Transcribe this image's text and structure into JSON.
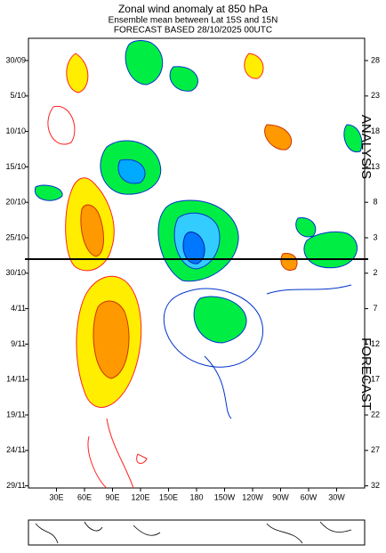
{
  "chart_data": {
    "type": "contour",
    "title": "Zonal wind anomaly at 850 hPa",
    "subtitle": [
      "Ensemble mean between  Lat 15S and 15N",
      "FORECAST  BASED 28/10/2025 00UTC"
    ],
    "categories": [
      "30E",
      "60E",
      "90E",
      "120E",
      "150E",
      "180",
      "150W",
      "120W",
      "90W",
      "60W",
      "30W"
    ],
    "y_categories": [
      "30/09",
      "5/10",
      "10/10",
      "15/10",
      "20/10",
      "25/10",
      "30/10",
      "4/11",
      "9/11",
      "14/11",
      "19/11",
      "24/11",
      "29/11"
    ],
    "y2_categories": [
      28,
      23,
      18,
      13,
      8,
      3,
      2,
      7,
      12,
      17,
      22,
      27,
      32
    ],
    "annotations": [
      "ANALYSIS",
      "FORECAST"
    ]
  }
}
